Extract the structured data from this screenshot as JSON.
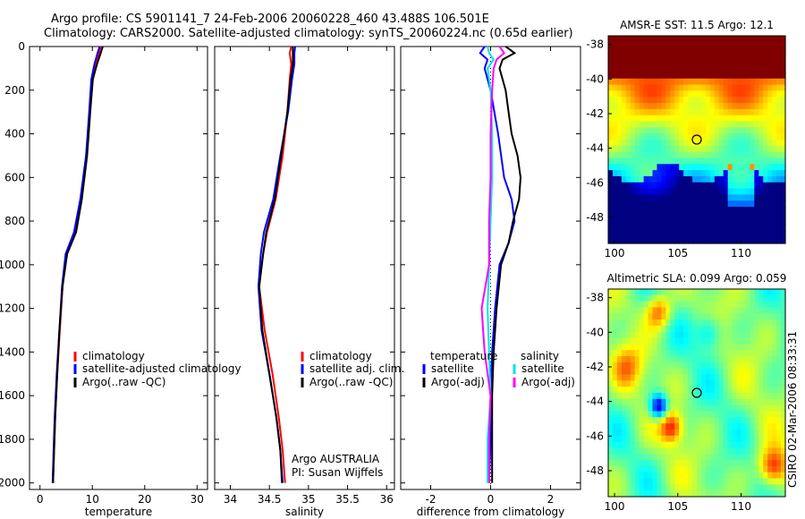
{
  "header": {
    "line1": "Argo profile: CS 5901141_7 24-Feb-2006 20060228_460 43.488S 106.501E",
    "line2": "Climatology: CARS2000. Satellite-adjusted climatology: synTS_20060224.nc (0.65d earlier)"
  },
  "stamp": "CSIRO 02-Mar-2006 08:33:31",
  "colors": {
    "climatology": "#ff0000",
    "satellite": "#0000ff",
    "argo": "#000000",
    "sal_satellite": "#00e5e5",
    "sal_argo": "#ff00ff"
  },
  "chart_data": [
    {
      "id": "temperature",
      "type": "line",
      "xlabel": "temperature",
      "xlim": [
        -2,
        32
      ],
      "ylim": [
        0,
        2030
      ],
      "y_reversed": true,
      "xticks": [
        0,
        10,
        20,
        30
      ],
      "yticks": [
        0,
        200,
        400,
        600,
        800,
        1000,
        1200,
        1400,
        1600,
        1800,
        2000
      ],
      "series": [
        {
          "name": "climatology",
          "color": "#ff0000",
          "depth": [
            0,
            30,
            80,
            150,
            300,
            500,
            700,
            850,
            950,
            1100,
            1300,
            1500,
            1700,
            1850,
            2000
          ],
          "values": [
            11.6,
            11.3,
            10.7,
            10.1,
            9.5,
            8.9,
            7.9,
            6.8,
            5.0,
            4.3,
            3.8,
            3.3,
            2.9,
            2.7,
            2.5
          ]
        },
        {
          "name": "satellite-adjusted climatology",
          "color": "#0000ff",
          "depth": [
            0,
            30,
            80,
            150,
            300,
            500,
            700,
            850,
            950,
            1100,
            1300,
            1500,
            1700,
            1850,
            2000
          ],
          "values": [
            11.4,
            11.0,
            10.4,
            9.8,
            9.4,
            8.8,
            7.7,
            6.5,
            4.9,
            4.2,
            3.7,
            3.2,
            2.8,
            2.6,
            2.4
          ]
        },
        {
          "name": "Argo(..raw -QC)",
          "color": "#000000",
          "depth": [
            0,
            30,
            80,
            150,
            300,
            500,
            700,
            850,
            950,
            1100,
            1300,
            1500,
            1700,
            1850,
            2000
          ],
          "values": [
            12.0,
            11.6,
            10.9,
            10.1,
            9.6,
            9.0,
            8.0,
            6.9,
            5.2,
            4.3,
            3.7,
            3.3,
            2.9,
            2.7,
            2.5
          ]
        }
      ],
      "legend": {
        "items": [
          "climatology",
          "satellite-adjusted climatology",
          "Argo(..raw -QC)"
        ]
      }
    },
    {
      "id": "salinity",
      "type": "line",
      "xlabel": "salinity",
      "xlim": [
        33.8,
        36.1
      ],
      "ylim": [
        0,
        2030
      ],
      "y_reversed": true,
      "xticks": [
        34,
        34.5,
        35,
        35.5,
        36
      ],
      "xticklabels": [
        "34",
        "34.5",
        "35",
        "35.5",
        "36"
      ],
      "series": [
        {
          "name": "climatology",
          "color": "#ff0000",
          "depth": [
            0,
            30,
            80,
            150,
            300,
            500,
            700,
            850,
            950,
            1100,
            1300,
            1500,
            1700,
            1850,
            2000
          ],
          "values": [
            34.78,
            34.76,
            34.78,
            34.76,
            34.73,
            34.67,
            34.58,
            34.47,
            34.42,
            34.37,
            34.44,
            34.54,
            34.62,
            34.67,
            34.7
          ]
        },
        {
          "name": "satellite adj. clim.",
          "color": "#0000ff",
          "depth": [
            0,
            30,
            80,
            150,
            300,
            500,
            700,
            850,
            950,
            1100,
            1300,
            1500,
            1700,
            1850,
            2000
          ],
          "values": [
            34.83,
            34.82,
            34.82,
            34.79,
            34.74,
            34.64,
            34.55,
            34.43,
            34.39,
            34.36,
            34.4,
            34.5,
            34.59,
            34.64,
            34.67
          ]
        },
        {
          "name": "Argo(..raw -QC)",
          "color": "#000000",
          "depth": [
            0,
            30,
            80,
            150,
            300,
            500,
            700,
            850,
            950,
            1100,
            1300,
            1500,
            1700,
            1850,
            2000
          ],
          "values": [
            34.8,
            34.8,
            34.8,
            34.77,
            34.73,
            34.65,
            34.57,
            34.46,
            34.42,
            34.37,
            34.41,
            34.5,
            34.59,
            34.64,
            34.66
          ]
        }
      ],
      "legend": {
        "items": [
          "climatology",
          "satellite adj. clim.",
          "Argo(..raw -QC)"
        ]
      },
      "annotation": [
        "Argo AUSTRALIA",
        "PI: Susan Wijffels"
      ]
    },
    {
      "id": "difference",
      "type": "line",
      "xlabel": "difference from climatology",
      "xlim": [
        -3,
        3
      ],
      "ylim": [
        0,
        2030
      ],
      "y_reversed": true,
      "xticks": [
        -2,
        0,
        2
      ],
      "series": [
        {
          "name": "temperature satellite",
          "color": "#0000ff",
          "depth": [
            0,
            30,
            60,
            100,
            200,
            400,
            600,
            700,
            800,
            900,
            1000,
            1200,
            1400,
            1600,
            1800,
            2000
          ],
          "values": [
            -0.2,
            -0.35,
            -0.1,
            -0.2,
            0.0,
            0.25,
            0.45,
            0.7,
            0.8,
            0.6,
            0.3,
            0.15,
            0.05,
            0.0,
            0.0,
            -0.05
          ]
        },
        {
          "name": "temperature Argo(-adj)",
          "color": "#000000",
          "depth": [
            0,
            30,
            60,
            100,
            200,
            300,
            400,
            500,
            600,
            700,
            800,
            900,
            1000,
            1200,
            1400,
            1600,
            1800,
            2000
          ],
          "values": [
            0.5,
            0.8,
            0.4,
            0.3,
            0.5,
            0.6,
            0.7,
            0.9,
            1.0,
            0.95,
            0.75,
            0.6,
            0.35,
            0.2,
            0.1,
            0.05,
            0.05,
            0.05
          ]
        },
        {
          "name": "salinity satellite",
          "color": "#00e5e5",
          "depth": [
            0,
            30,
            60,
            100,
            200,
            400,
            600,
            800,
            1000,
            1200,
            1400,
            1600,
            1800,
            2000
          ],
          "values": [
            -0.1,
            -0.05,
            0.1,
            -0.1,
            0.0,
            0.05,
            0.05,
            0.0,
            -0.05,
            -0.1,
            -0.05,
            0.0,
            -0.1,
            -0.1
          ]
        },
        {
          "name": "salinity Argo(-adj)",
          "color": "#ff00ff",
          "depth": [
            0,
            30,
            60,
            100,
            200,
            400,
            600,
            800,
            1000,
            1200,
            1400,
            1600,
            1800,
            2000
          ],
          "values": [
            0.3,
            0.45,
            0.2,
            0.1,
            0.05,
            0.0,
            0.0,
            -0.05,
            -0.05,
            -0.3,
            -0.2,
            0.0,
            -0.05,
            -0.05
          ]
        }
      ],
      "legend": {
        "temperature_heading": "temperature",
        "salinity_heading": "salinity",
        "items": [
          "satellite",
          "Argo(-adj)",
          "satellite",
          "Argo(-adj)"
        ]
      }
    },
    {
      "id": "amsre_sst",
      "type": "heatmap",
      "title": "AMSR-E SST: 11.5 Argo: 12.1",
      "xlim": [
        99.5,
        113.5
      ],
      "ylim": [
        -49.5,
        -37.5
      ],
      "xticks": [
        100,
        105,
        110
      ],
      "yticks": [
        -38,
        -40,
        -42,
        -44,
        -46,
        -48
      ],
      "marker": {
        "lon": 106.5,
        "lat": -43.5
      },
      "range": [
        6,
        14
      ]
    },
    {
      "id": "altimetric_sla",
      "type": "heatmap",
      "title": "Altimetric SLA: 0.099 Argo: 0.059",
      "xlim": [
        99.5,
        113.5
      ],
      "ylim": [
        -49.5,
        -37.5
      ],
      "xticks": [
        100,
        105,
        110
      ],
      "yticks": [
        -38,
        -40,
        -42,
        -44,
        -46,
        -48
      ],
      "marker": {
        "lon": 106.5,
        "lat": -43.5
      },
      "range": [
        -0.3,
        0.3
      ]
    }
  ]
}
